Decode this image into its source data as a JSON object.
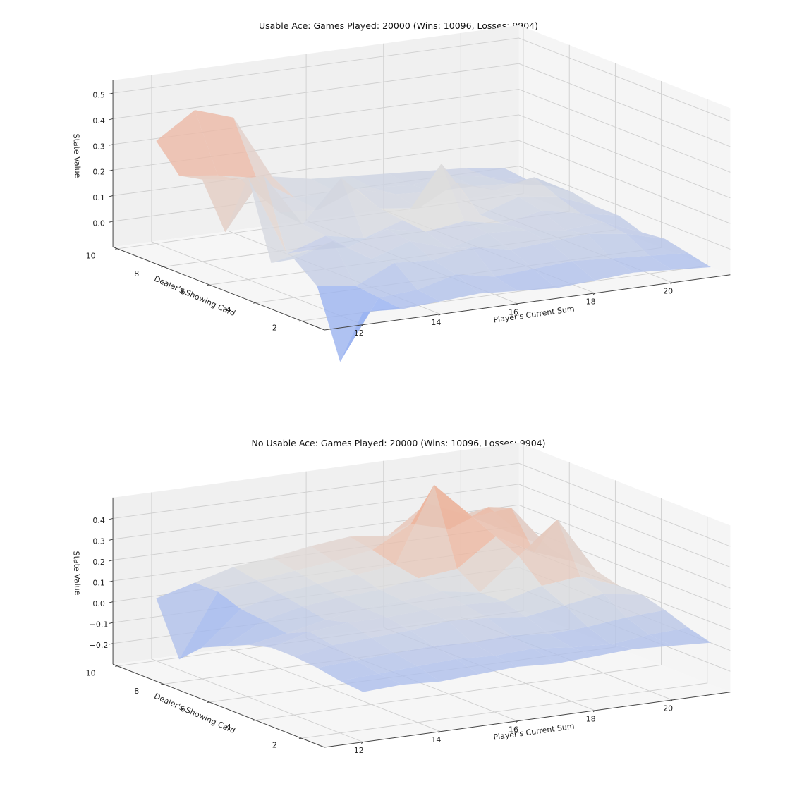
{
  "figure": {
    "charts": [
      {
        "title": "Usable Ace: Games Played: 20000 (Wins: 10096, Losses: 9904)"
      },
      {
        "title": "No Usable Ace: Games Played: 20000 (Wins: 10096, Losses: 9904)"
      }
    ]
  },
  "chart_data": [
    {
      "type": "surface",
      "title": "Usable Ace: Games Played: 20000 (Wins: 10096, Losses: 9904)",
      "xlabel": "Player's Current Sum",
      "ylabel": "Dealer's Showing Card",
      "zlabel": "State Value",
      "x": [
        12,
        13,
        14,
        15,
        16,
        17,
        18,
        19,
        20,
        21
      ],
      "y": [
        1,
        2,
        3,
        4,
        5,
        6,
        7,
        8,
        9,
        10
      ],
      "x_ticks": [
        12,
        14,
        16,
        18,
        20
      ],
      "y_ticks": [
        2,
        4,
        6,
        8,
        10
      ],
      "z_ticks": [
        0.0,
        0.1,
        0.2,
        0.3,
        0.4,
        0.5
      ],
      "z_tick_labels": [
        "0.0",
        "0.1",
        "0.2",
        "0.3",
        "0.4",
        "0.5"
      ],
      "zlim": [
        -0.1,
        0.55
      ],
      "colormap": "coolwarm",
      "grid": true,
      "z": [
        [
          -0.05,
          -0.06,
          -0.05,
          -0.04,
          -0.05,
          -0.06,
          -0.05,
          -0.04,
          -0.05,
          -0.06
        ],
        [
          -0.28,
          -0.05,
          -0.04,
          0.0,
          -0.03,
          -0.02,
          -0.01,
          -0.02,
          -0.03,
          -0.04
        ],
        [
          -0.02,
          -0.04,
          0.03,
          0.02,
          0.05,
          0.02,
          0.03,
          0.04,
          0.02,
          -0.02
        ],
        [
          0.05,
          0.1,
          0.01,
          0.06,
          0.01,
          0.05,
          0.04,
          0.02,
          0.03,
          -0.03
        ],
        [
          0.0,
          0.03,
          0.02,
          0.07,
          0.04,
          0.06,
          0.03,
          0.06,
          0.03,
          0.0
        ],
        [
          0.3,
          -0.02,
          0.03,
          0.0,
          0.05,
          0.25,
          0.03,
          0.08,
          0.06,
          0.0
        ],
        [
          0.05,
          0.25,
          0.04,
          0.2,
          0.06,
          0.04,
          0.12,
          0.07,
          0.1,
          0.02
        ],
        [
          0.22,
          0.2,
          0.05,
          0.04,
          0.1,
          0.06,
          0.05,
          0.05,
          0.04,
          0.01
        ],
        [
          0.2,
          0.18,
          0.15,
          0.05,
          0.06,
          0.05,
          0.04,
          0.06,
          0.03,
          0.0
        ],
        [
          0.3,
          0.4,
          0.35,
          0.1,
          0.07,
          0.06,
          0.05,
          0.04,
          0.03,
          0.01
        ]
      ]
    },
    {
      "type": "surface",
      "title": "No Usable Ace: Games Played: 20000 (Wins: 10096, Losses: 9904)",
      "xlabel": "Player's Current Sum",
      "ylabel": "Dealer's Showing Card",
      "zlabel": "State Value",
      "x": [
        12,
        13,
        14,
        15,
        16,
        17,
        18,
        19,
        20,
        21
      ],
      "y": [
        1,
        2,
        3,
        4,
        5,
        6,
        7,
        8,
        9,
        10
      ],
      "x_ticks": [
        12,
        14,
        16,
        18,
        20
      ],
      "y_ticks": [
        2,
        4,
        6,
        8,
        10
      ],
      "z_ticks": [
        -0.2,
        -0.1,
        0.0,
        0.1,
        0.2,
        0.3,
        0.4
      ],
      "z_tick_labels": [
        "−0.2",
        "−0.1",
        "0.0",
        "0.1",
        "0.2",
        "0.3",
        "0.4"
      ],
      "zlim": [
        -0.3,
        0.5
      ],
      "colormap": "coolwarm",
      "grid": true,
      "z": [
        [
          -0.06,
          -0.05,
          -0.06,
          -0.05,
          -0.04,
          -0.05,
          -0.04,
          -0.03,
          -0.04,
          -0.05
        ],
        [
          -0.05,
          -0.04,
          -0.03,
          -0.02,
          -0.03,
          -0.02,
          -0.04,
          -0.05,
          -0.03,
          -0.02
        ],
        [
          -0.03,
          -0.02,
          -0.01,
          0.0,
          -0.01,
          0.0,
          -0.02,
          -0.01,
          0.01,
          0.02
        ],
        [
          -0.02,
          0.01,
          0.02,
          0.03,
          0.05,
          0.04,
          0.02,
          0.05,
          0.08,
          0.05
        ],
        [
          -0.02,
          0.03,
          0.05,
          0.05,
          0.06,
          0.06,
          0.05,
          0.1,
          0.12,
          0.05
        ],
        [
          -0.05,
          -0.02,
          0.02,
          0.05,
          0.06,
          0.08,
          0.05,
          0.2,
          0.35,
          0.08
        ],
        [
          -0.1,
          0.0,
          0.04,
          0.06,
          0.07,
          0.1,
          0.12,
          0.25,
          0.15,
          0.08
        ],
        [
          -0.15,
          0.01,
          0.06,
          0.08,
          0.1,
          0.12,
          0.48,
          0.3,
          0.32,
          0.1
        ],
        [
          -0.25,
          0.05,
          0.08,
          0.1,
          0.12,
          0.15,
          0.25,
          0.2,
          0.28,
          0.1
        ],
        [
          0.0,
          0.05,
          0.1,
          0.12,
          0.15,
          0.17,
          0.15,
          0.28,
          0.2,
          0.1
        ]
      ]
    }
  ]
}
